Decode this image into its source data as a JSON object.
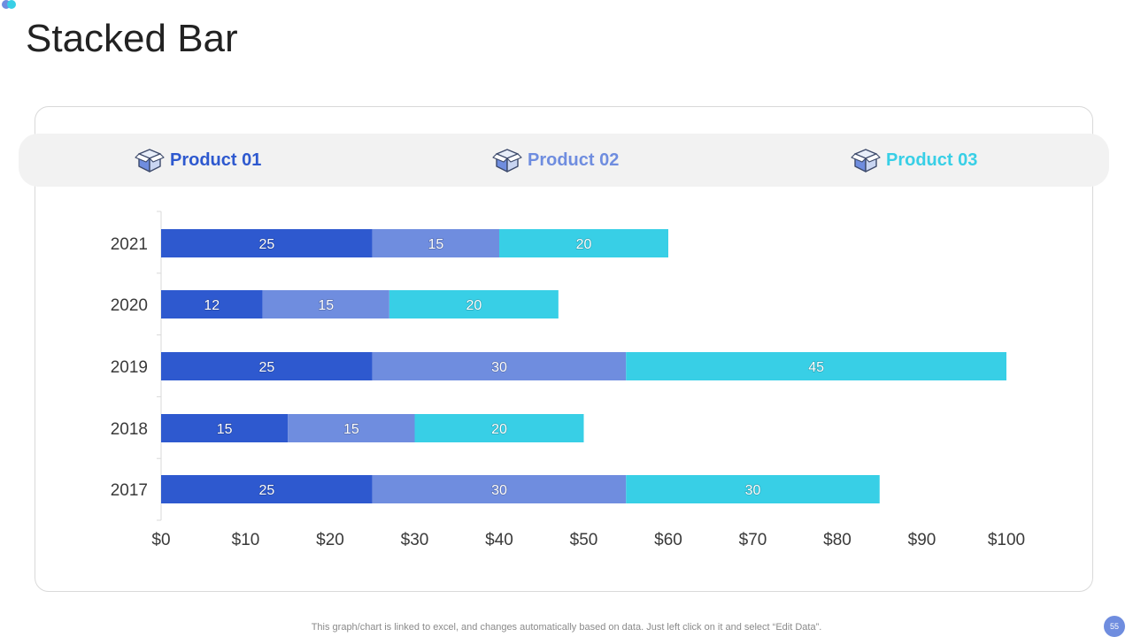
{
  "title": "Stacked Bar",
  "legend": {
    "items": [
      {
        "label": "Product 01",
        "icon": "box-icon",
        "color": "#2e59cf"
      },
      {
        "label": "Product 02",
        "icon": "box-icon",
        "color": "#6f8ddf"
      },
      {
        "label": "Product 03",
        "icon": "box-icon",
        "color": "#38cfe6"
      }
    ]
  },
  "chart_data": {
    "type": "bar",
    "orientation": "horizontal",
    "stacked": true,
    "categories": [
      "2017",
      "2018",
      "2019",
      "2020",
      "2021"
    ],
    "series": [
      {
        "name": "Product 01",
        "values": [
          25,
          15,
          25,
          12,
          25
        ],
        "color": "#2e59cf"
      },
      {
        "name": "Product 02",
        "values": [
          30,
          15,
          30,
          15,
          15
        ],
        "color": "#6f8ddf"
      },
      {
        "name": "Product 03",
        "values": [
          30,
          20,
          45,
          20,
          20
        ],
        "color": "#38cfe6"
      }
    ],
    "xlim": [
      0,
      100
    ],
    "x_ticks": [
      0,
      10,
      20,
      30,
      40,
      50,
      60,
      70,
      80,
      90,
      100
    ],
    "x_tick_labels": [
      "$0",
      "$10",
      "$20",
      "$30",
      "$40",
      "$50",
      "$60",
      "$70",
      "$80",
      "$90",
      "$100"
    ],
    "data_labels": true,
    "grid": false,
    "legend_position": "top",
    "title": "",
    "xlabel": "",
    "ylabel": ""
  },
  "footnote": "This graph/chart is linked to excel,  and changes automatically based on data. Just left click on it and select “Edit Data”.",
  "page_number": "55",
  "accent_colors": {
    "dot_left": "#6f8ddf",
    "dot_right": "#38cfe6",
    "page_badge": "#6f8ddf"
  }
}
